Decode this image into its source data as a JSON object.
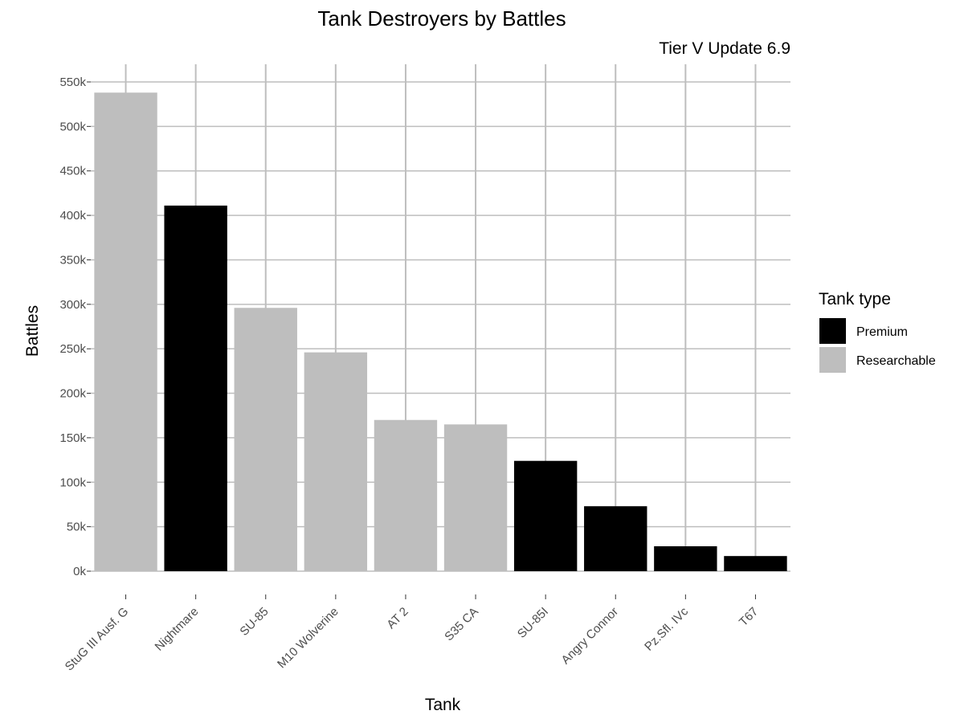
{
  "chart_data": {
    "type": "bar",
    "title": "Tank Destroyers by Battles",
    "subtitle": "Tier V Update 6.9",
    "xlabel": "Tank",
    "ylabel": "Battles",
    "ylim": [
      0,
      550000
    ],
    "yticks": [
      0,
      50000,
      100000,
      150000,
      200000,
      250000,
      300000,
      350000,
      400000,
      450000,
      500000,
      550000
    ],
    "ytick_labels": [
      "0k",
      "50k",
      "100k",
      "150k",
      "200k",
      "250k",
      "300k",
      "350k",
      "400k",
      "450k",
      "500k",
      "550k"
    ],
    "categories": [
      "StuG III Ausf. G",
      "Nightmare",
      "SU-85",
      "M10 Wolverine",
      "AT 2",
      "S35 CA",
      "SU-85I",
      "Angry Connor",
      "Pz.Sfl. IVc",
      "T67"
    ],
    "values": [
      538000,
      411000,
      296000,
      246000,
      170000,
      165000,
      124000,
      73000,
      28000,
      17000
    ],
    "tank_type": [
      "Researchable",
      "Premium",
      "Researchable",
      "Researchable",
      "Researchable",
      "Researchable",
      "Premium",
      "Premium",
      "Premium",
      "Premium"
    ],
    "grid": true,
    "legend": {
      "title": "Tank type",
      "placement": "right",
      "entries": [
        {
          "label": "Premium",
          "color": "#000000"
        },
        {
          "label": "Researchable",
          "color": "#bebebe"
        }
      ]
    }
  }
}
